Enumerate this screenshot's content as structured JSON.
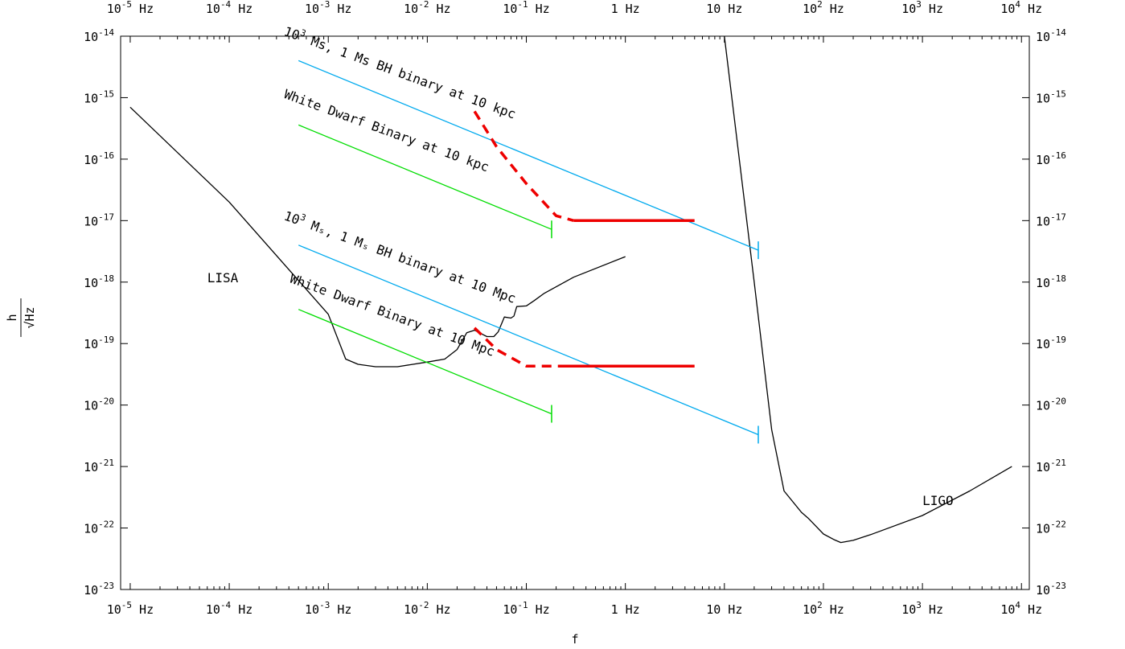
{
  "chart_data": {
    "type": "line",
    "title": "",
    "xlabel": "f",
    "ylabel": "h/√Hz",
    "xscale": "log",
    "yscale": "log",
    "xlim": [
      8e-06,
      12000.0
    ],
    "ylim": [
      1e-23,
      1e-14
    ],
    "x_ticks": [
      {
        "base": "10",
        "exp": "-5",
        "unit": "Hz",
        "value": 1e-05
      },
      {
        "base": "10",
        "exp": "-4",
        "unit": "Hz",
        "value": 0.0001
      },
      {
        "base": "10",
        "exp": "-3",
        "unit": "Hz",
        "value": 0.001
      },
      {
        "base": "10",
        "exp": "-2",
        "unit": "Hz",
        "value": 0.01
      },
      {
        "base": "10",
        "exp": "-1",
        "unit": "Hz",
        "value": 0.1
      },
      {
        "base": "1",
        "exp": "",
        "unit": "Hz",
        "value": 1
      },
      {
        "base": "10",
        "exp": "",
        "unit": "Hz",
        "value": 10
      },
      {
        "base": "10",
        "exp": "2",
        "unit": "Hz",
        "value": 100
      },
      {
        "base": "10",
        "exp": "3",
        "unit": "Hz",
        "value": 1000
      },
      {
        "base": "10",
        "exp": "4",
        "unit": "Hz",
        "value": 10000
      }
    ],
    "y_ticks": [
      {
        "base": "10",
        "exp": "-14",
        "value": 1e-14
      },
      {
        "base": "10",
        "exp": "-15",
        "value": 1e-15
      },
      {
        "base": "10",
        "exp": "-16",
        "value": 1e-16
      },
      {
        "base": "10",
        "exp": "-17",
        "value": 1e-17
      },
      {
        "base": "10",
        "exp": "-18",
        "value": 1e-18
      },
      {
        "base": "10",
        "exp": "-19",
        "value": 1e-19
      },
      {
        "base": "10",
        "exp": "-20",
        "value": 1e-20
      },
      {
        "base": "10",
        "exp": "-21",
        "value": 1e-21
      },
      {
        "base": "10",
        "exp": "-22",
        "value": 1e-22
      },
      {
        "base": "10",
        "exp": "-23",
        "value": 1e-23
      }
    ],
    "series": [
      {
        "key": "lisa",
        "color": "#000000",
        "style": "solid",
        "points": [
          [
            1e-05,
            7e-16
          ],
          [
            0.0001,
            2e-17
          ],
          [
            0.001,
            3e-19
          ],
          [
            0.0015,
            5.6e-20
          ],
          [
            0.002,
            4.6e-20
          ],
          [
            0.003,
            4.2e-20
          ],
          [
            0.005,
            4.2e-20
          ],
          [
            0.01,
            5e-20
          ],
          [
            0.015,
            5.6e-20
          ],
          [
            0.02,
            8e-20
          ],
          [
            0.025,
            1.5e-19
          ],
          [
            0.03,
            1.65e-19
          ],
          [
            0.035,
            1.45e-19
          ],
          [
            0.04,
            1.3e-19
          ],
          [
            0.047,
            1.3e-19
          ],
          [
            0.052,
            1.55e-19
          ],
          [
            0.06,
            2.7e-19
          ],
          [
            0.07,
            2.6e-19
          ],
          [
            0.075,
            2.8e-19
          ],
          [
            0.08,
            4e-19
          ],
          [
            0.1,
            4.1e-19
          ],
          [
            0.12,
            5e-19
          ],
          [
            0.15,
            6.5e-19
          ],
          [
            0.3,
            1.2e-18
          ],
          [
            1,
            2.6e-18
          ]
        ]
      },
      {
        "key": "ligo",
        "color": "#000000",
        "style": "solid",
        "points": [
          [
            10,
            1e-14
          ],
          [
            20,
            1e-18
          ],
          [
            30,
            4e-21
          ],
          [
            40,
            4e-22
          ],
          [
            60,
            1.8e-22
          ],
          [
            70,
            1.45e-22
          ],
          [
            100,
            8e-23
          ],
          [
            130,
            6.4e-23
          ],
          [
            150,
            5.8e-23
          ],
          [
            200,
            6.3e-23
          ],
          [
            300,
            7.8e-23
          ],
          [
            1000,
            1.6e-22
          ],
          [
            3000,
            4e-22
          ],
          [
            8000,
            1e-21
          ]
        ]
      },
      {
        "key": "bh_10kpc",
        "color": "#00aaee",
        "style": "solid",
        "points": [
          [
            0.0005,
            4e-15
          ],
          [
            22,
            3.3e-18
          ]
        ]
      },
      {
        "key": "wd_10kpc",
        "color": "#00dd00",
        "style": "solid",
        "points": [
          [
            0.0005,
            3.6e-16
          ],
          [
            0.18,
            7.2e-18
          ]
        ]
      },
      {
        "key": "bh_10mpc",
        "color": "#00aaee",
        "style": "solid",
        "points": [
          [
            0.0005,
            4e-18
          ],
          [
            22,
            3.3e-21
          ]
        ]
      },
      {
        "key": "wd_10mpc",
        "color": "#00dd00",
        "style": "solid",
        "points": [
          [
            0.0005,
            3.6e-19
          ],
          [
            0.18,
            7.2e-21
          ]
        ]
      },
      {
        "key": "red_upper_dashed",
        "color": "#ee0000",
        "style": "dashed",
        "points": [
          [
            0.03,
            6e-16
          ],
          [
            0.05,
            1.6e-16
          ],
          [
            0.1,
            4e-17
          ],
          [
            0.2,
            1.2e-17
          ],
          [
            0.3,
            1e-17
          ]
        ]
      },
      {
        "key": "red_upper_solid",
        "color": "#ee0000",
        "style": "solid",
        "points": [
          [
            0.3,
            1e-17
          ],
          [
            5,
            1e-17
          ]
        ]
      },
      {
        "key": "red_lower_dashed",
        "color": "#ee0000",
        "style": "dashed",
        "points": [
          [
            0.03,
            1.8e-19
          ],
          [
            0.05,
            8e-20
          ],
          [
            0.1,
            4.3e-20
          ],
          [
            0.25,
            4.3e-20
          ]
        ]
      },
      {
        "key": "red_lower_solid",
        "color": "#ee0000",
        "style": "solid",
        "points": [
          [
            0.25,
            4.3e-20
          ],
          [
            5,
            4.3e-20
          ]
        ]
      }
    ],
    "end_caps": [
      {
        "x": 0.18,
        "y": 7.2e-18,
        "color": "#00dd00"
      },
      {
        "x": 22,
        "y": 3.3e-18,
        "color": "#00aaee"
      },
      {
        "x": 0.18,
        "y": 7.2e-21,
        "color": "#00dd00"
      },
      {
        "x": 22,
        "y": 3.3e-21,
        "color": "#00aaee"
      }
    ],
    "annotations": [
      {
        "key": "ann-bh-10kpc",
        "text": "Ms, 1 Ms BH binary at 10 kpc",
        "prefix_base": "10",
        "prefix_exp": "3",
        "x": 0.00035,
        "y": 1.05e-14,
        "angle": 20
      },
      {
        "key": "ann-wd-10kpc",
        "text": "White Dwarf Binary at 10 kpc",
        "x": 0.00035,
        "y": 1e-15,
        "angle": 20
      },
      {
        "key": "ann-bh-10mpc",
        "text": "Mₛ, 1 Mₛ BH binary at 10 Mpc",
        "prefix_base": "10",
        "prefix_exp": "3",
        "x": 0.00035,
        "y": 1.05e-17,
        "angle": 20
      },
      {
        "key": "ann-wd-10mpc",
        "text": "White Dwarf Binary at 10 Mpc",
        "x": 0.0004,
        "y": 1e-18,
        "angle": 20
      },
      {
        "key": "ann-lisa",
        "text": "LISA",
        "x": 6e-05,
        "y": 1e-18,
        "angle": 0
      },
      {
        "key": "ann-ligo",
        "text": "LIGO",
        "x": 1000,
        "y": 2.35e-22,
        "angle": 0
      }
    ]
  }
}
